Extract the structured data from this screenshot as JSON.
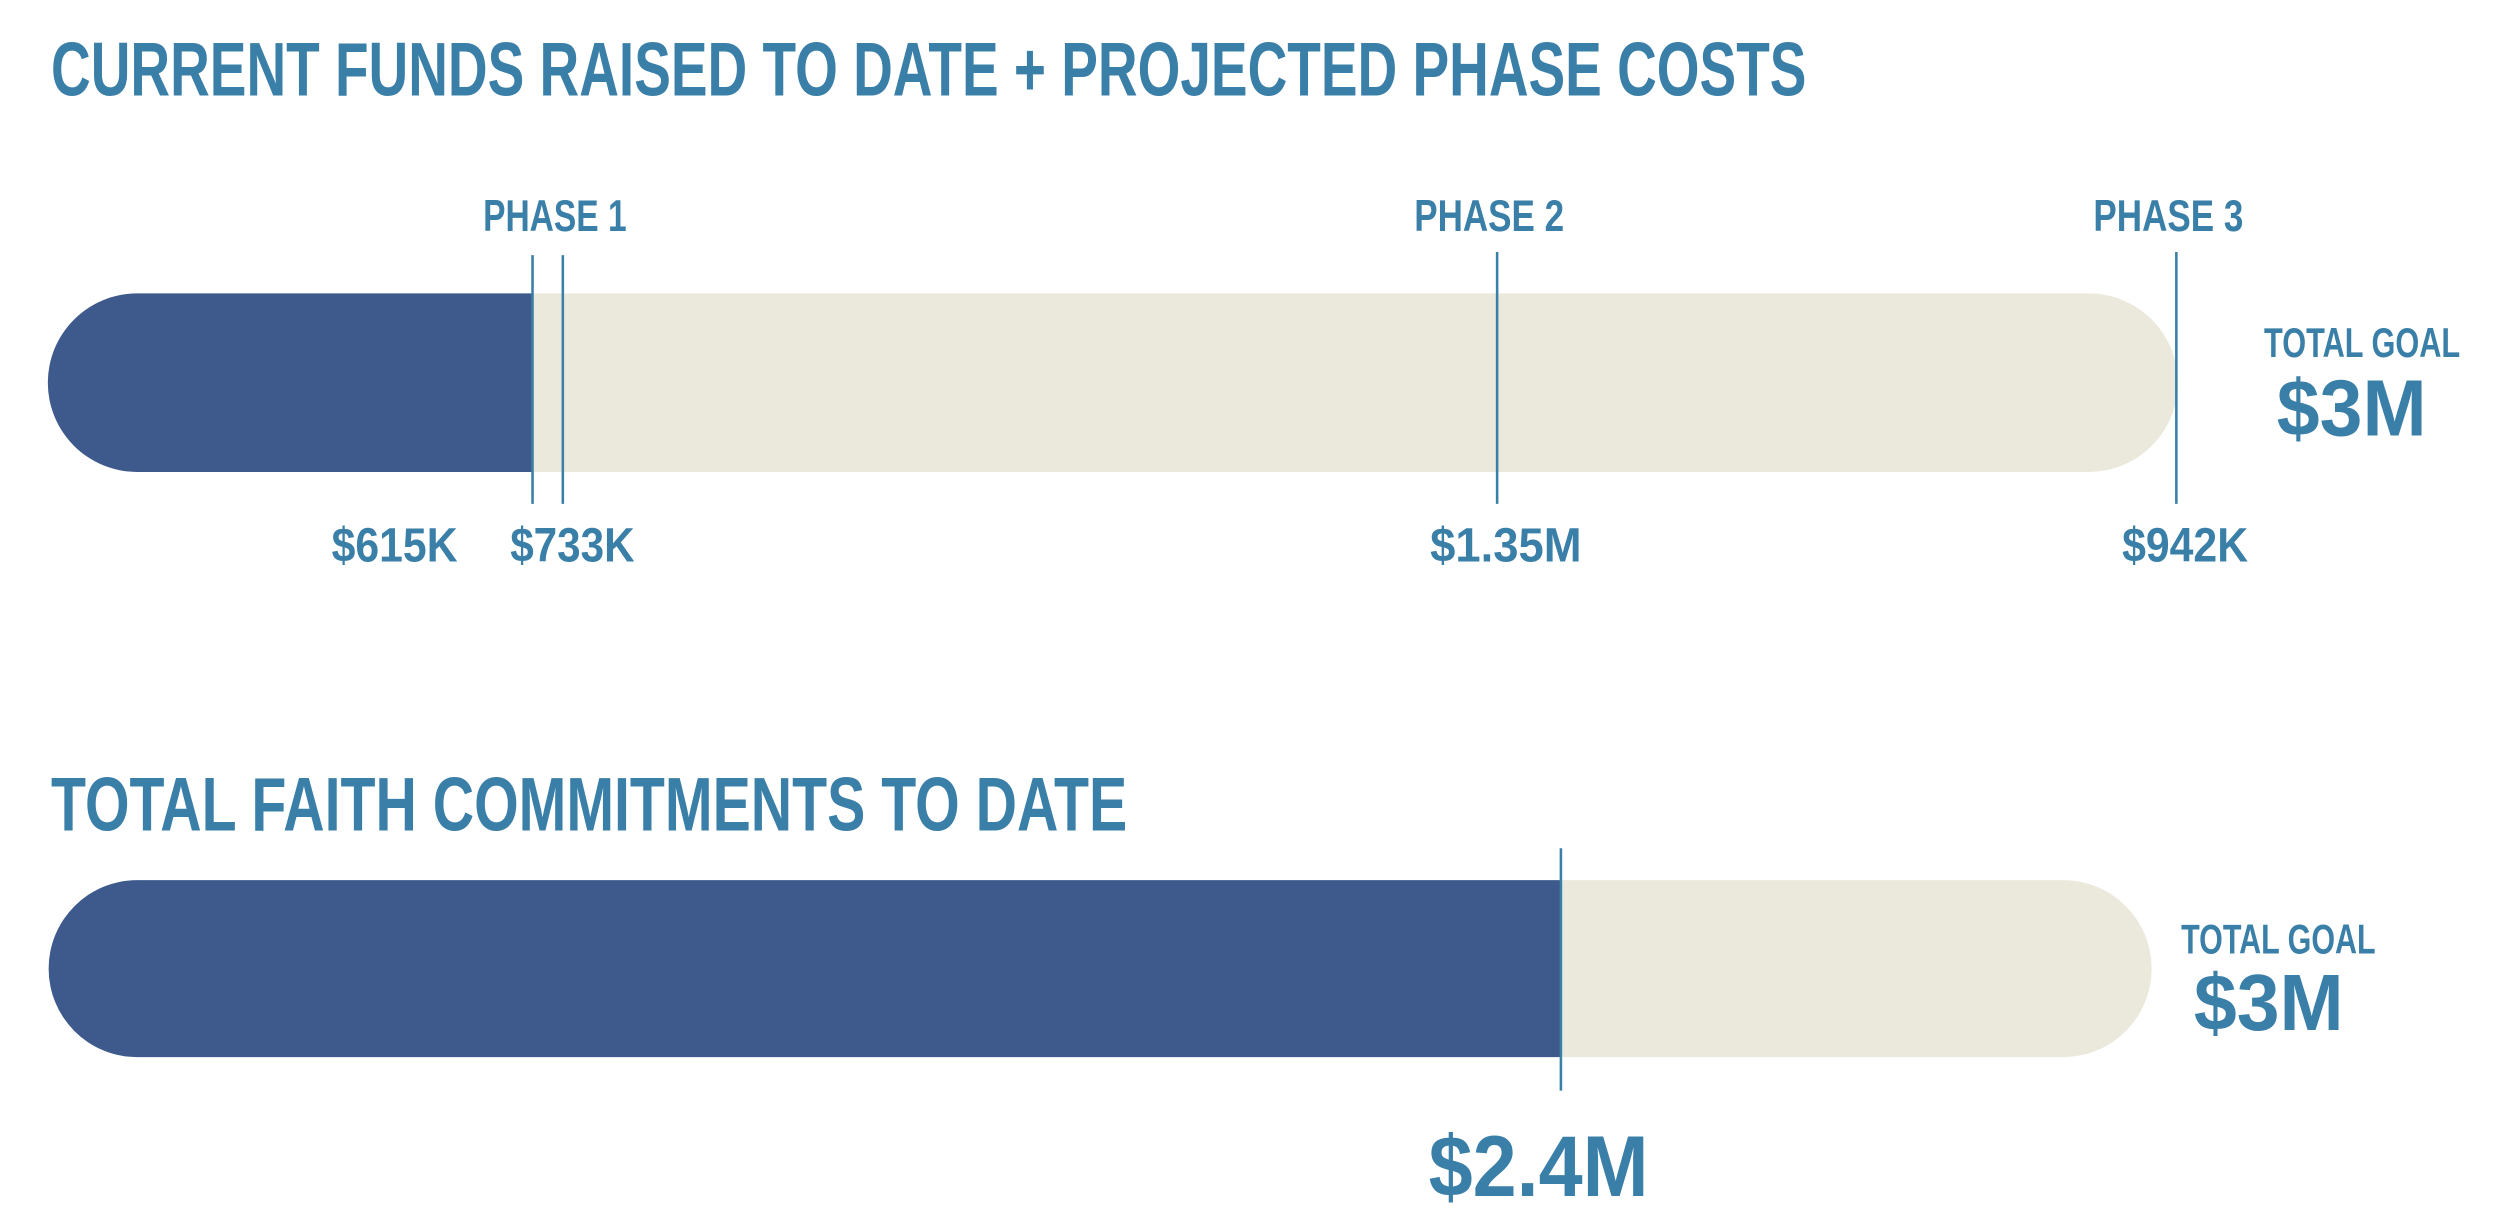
{
  "funds_section": {
    "title": "CURRENT FUNDS RAISED TO DATE + PROJECTED PHASE COSTS",
    "phases": [
      "PHASE 1",
      "PHASE 2",
      "PHASE 3"
    ],
    "amounts": [
      "$615K",
      "$733K",
      "$1.35M",
      "$942K"
    ],
    "total_goal": {
      "label": "TOTAL GOAL",
      "value": "$3M"
    }
  },
  "commitments_section": {
    "title": "TOTAL FAITH COMMITMENTS TO DATE",
    "amount": "$2.4M",
    "total_goal": {
      "label": "TOTAL GOAL",
      "value": "$3M"
    }
  }
}
